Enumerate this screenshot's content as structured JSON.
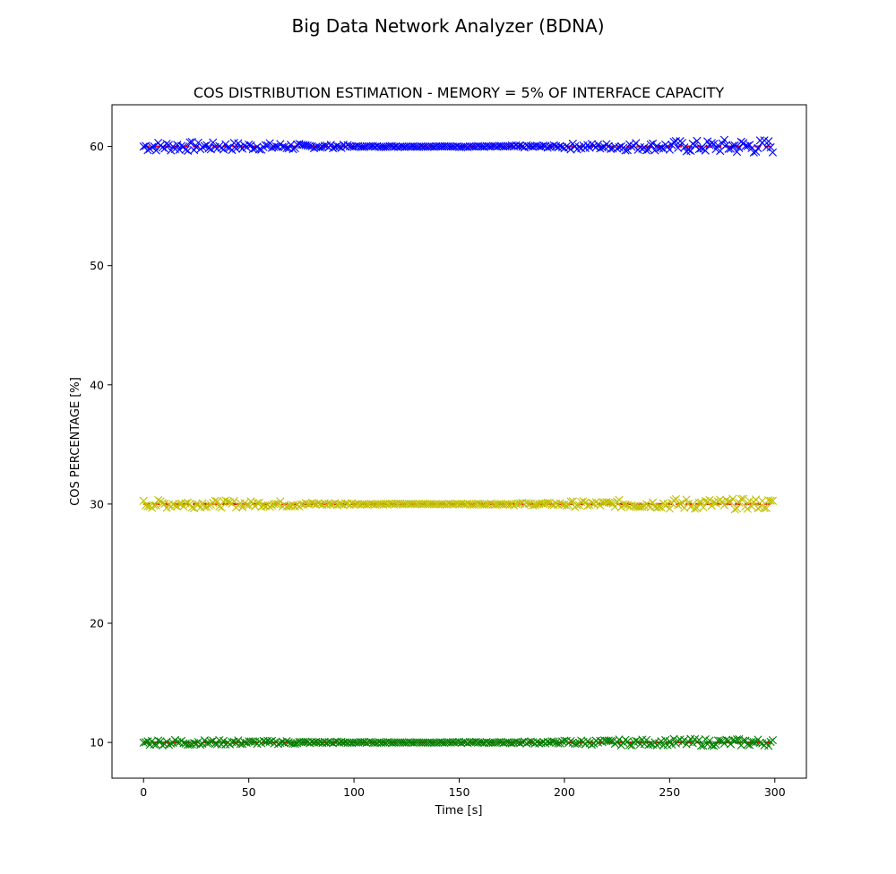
{
  "suptitle": "Big Data Network Analyzer (BDNA)",
  "chart_data": {
    "type": "scatter",
    "title": "COS DISTRIBUTION ESTIMATION - MEMORY = 5% OF INTERFACE CAPACITY",
    "xlabel": "Time [s]",
    "ylabel": "COS PERCENTAGE [%]",
    "xlim": [
      -15,
      315
    ],
    "ylim": [
      7,
      63.5
    ],
    "xticks": [
      0,
      50,
      100,
      150,
      200,
      250,
      300
    ],
    "yticks": [
      10,
      20,
      30,
      40,
      50,
      60
    ],
    "grid": false,
    "legend": "none",
    "x": {
      "start": 0,
      "end": 299,
      "step": 1
    },
    "series": [
      {
        "marker": "x",
        "color": "#0000ff",
        "target": 60,
        "noise_profile": [
          0.4,
          0.35,
          0.3,
          0.15,
          0.05,
          0.03,
          0.05,
          0.1,
          0.25,
          0.35,
          0.5,
          0.6
        ]
      },
      {
        "marker": "x",
        "color": "#bfbf00",
        "target": 30,
        "noise_profile": [
          0.35,
          0.3,
          0.25,
          0.12,
          0.05,
          0.03,
          0.05,
          0.12,
          0.25,
          0.35,
          0.45,
          0.45
        ]
      },
      {
        "marker": "x",
        "color": "#008000",
        "target": 10,
        "noise_profile": [
          0.25,
          0.2,
          0.15,
          0.08,
          0.04,
          0.03,
          0.05,
          0.1,
          0.2,
          0.25,
          0.3,
          0.3
        ]
      }
    ],
    "reference_lines": [
      {
        "y": 60,
        "color": "#ff0000",
        "style": "dashed",
        "x_range": [
          0,
          299
        ]
      },
      {
        "y": 30,
        "color": "#ff0000",
        "style": "dashed",
        "x_range": [
          0,
          299
        ]
      },
      {
        "y": 10,
        "color": "#ff0000",
        "style": "dashed",
        "x_range": [
          0,
          299
        ]
      }
    ]
  }
}
